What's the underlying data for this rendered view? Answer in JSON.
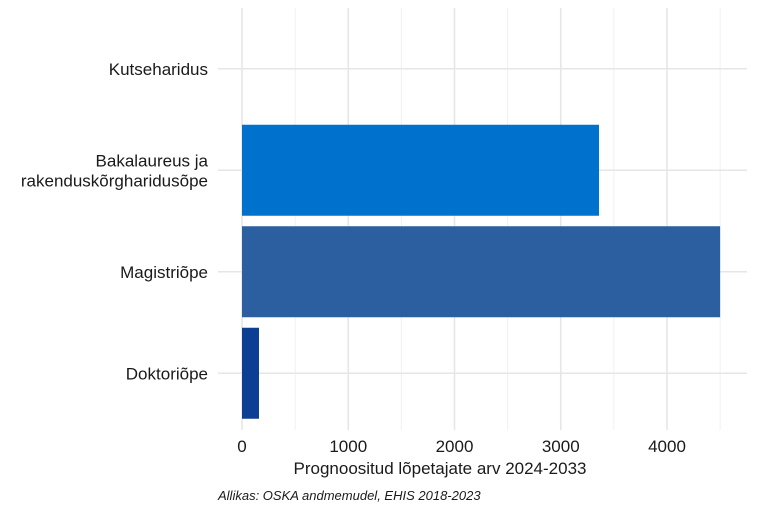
{
  "chart_data": {
    "type": "bar",
    "orientation": "horizontal",
    "categories": [
      "Kutseharidus",
      "Bakalaureus ja rakenduskõrgharidusõpe",
      "Magistriõpe",
      "Doktoriõpe"
    ],
    "category_lines": [
      [
        "Kutseharidus"
      ],
      [
        "Bakalaureus ja",
        "rakenduskõrgharidusõpe"
      ],
      [
        "Magistriõpe"
      ],
      [
        "Doktoriõpe"
      ]
    ],
    "values": [
      0,
      3360,
      4500,
      160
    ],
    "colors": [
      "#0072ce",
      "#0072ce",
      "#2c5fa0",
      "#0c3f94"
    ],
    "xlabel": "Prognoositud lõpetajate arv 2024-2033",
    "ylabel": "",
    "xlim": [
      0,
      4700
    ],
    "xticks": [
      0,
      1000,
      2000,
      3000,
      4000
    ],
    "xtick_labels": [
      "0",
      "1000",
      "2000",
      "3000",
      "4000"
    ],
    "grid": true,
    "legend": "none",
    "caption": "Allikas: OSKA andmemudel, EHIS 2018-2023"
  }
}
